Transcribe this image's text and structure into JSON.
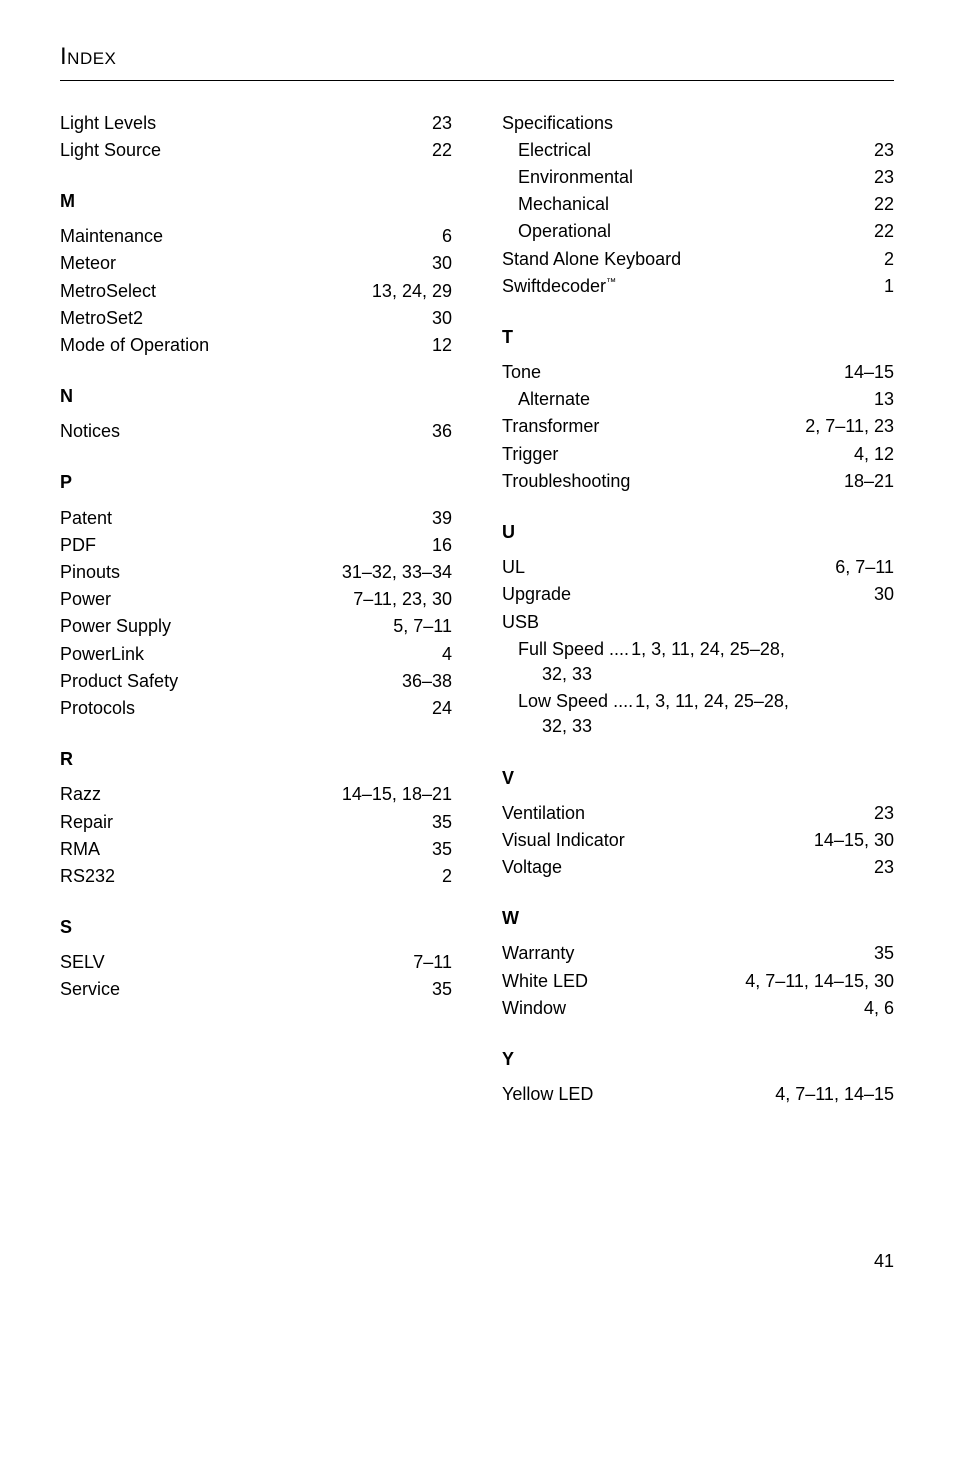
{
  "header": {
    "title": "Index"
  },
  "left_column": {
    "top_entries": [
      {
        "label": "Light Levels",
        "pages": "23",
        "indent": 0
      },
      {
        "label": "Light Source",
        "pages": "22",
        "indent": 0
      }
    ],
    "sections": [
      {
        "letter": "M",
        "entries": [
          {
            "label": "Maintenance",
            "pages": "6",
            "indent": 0
          },
          {
            "label": "Meteor",
            "pages": "30",
            "indent": 0
          },
          {
            "label": "MetroSelect",
            "pages": "13, 24, 29",
            "indent": 0
          },
          {
            "label": "MetroSet2",
            "pages": "30",
            "indent": 0
          },
          {
            "label": "Mode of Operation",
            "pages": "12",
            "indent": 0
          }
        ]
      },
      {
        "letter": "N",
        "entries": [
          {
            "label": "Notices",
            "pages": "36",
            "indent": 0
          }
        ]
      },
      {
        "letter": "P",
        "entries": [
          {
            "label": "Patent",
            "pages": "39",
            "indent": 0
          },
          {
            "label": "PDF",
            "pages": "16",
            "indent": 0
          },
          {
            "label": "Pinouts",
            "pages": "31–32, 33–34",
            "indent": 0
          },
          {
            "label": "Power",
            "pages": "7–11, 23, 30",
            "indent": 0
          },
          {
            "label": "Power Supply",
            "pages": "5, 7–11",
            "indent": 0
          },
          {
            "label": "PowerLink",
            "pages": "4",
            "indent": 0
          },
          {
            "label": "Product Safety",
            "pages": "36–38",
            "indent": 0
          },
          {
            "label": "Protocols",
            "pages": "24",
            "indent": 0
          }
        ]
      },
      {
        "letter": "R",
        "entries": [
          {
            "label": "Razz",
            "pages": "14–15, 18–21",
            "indent": 0
          },
          {
            "label": "Repair",
            "pages": "35",
            "indent": 0
          },
          {
            "label": "RMA",
            "pages": "35",
            "indent": 0
          },
          {
            "label": "RS232",
            "pages": "2",
            "indent": 0
          }
        ]
      },
      {
        "letter": "S",
        "entries": [
          {
            "label": "SELV",
            "pages": "7–11",
            "indent": 0
          },
          {
            "label": "Service",
            "pages": "35",
            "indent": 0
          }
        ]
      }
    ]
  },
  "right_column": {
    "top_entries": [
      {
        "label": "Specifications",
        "pages": "",
        "indent": 0,
        "header": true
      },
      {
        "label": "Electrical",
        "pages": "23",
        "indent": 1
      },
      {
        "label": "Environmental",
        "pages": "23",
        "indent": 1
      },
      {
        "label": "Mechanical",
        "pages": "22",
        "indent": 1
      },
      {
        "label": "Operational",
        "pages": "22",
        "indent": 1
      },
      {
        "label": "Stand Alone Keyboard",
        "pages": "2",
        "indent": 0
      },
      {
        "label": "Swiftdecoder",
        "tm": "™",
        "pages": "1",
        "indent": 0
      }
    ],
    "sections": [
      {
        "letter": "T",
        "entries": [
          {
            "label": "Tone",
            "pages": "14–15",
            "indent": 0
          },
          {
            "label": "Alternate",
            "pages": "13",
            "indent": 1
          },
          {
            "label": "Transformer",
            "pages": "2, 7–11, 23",
            "indent": 0
          },
          {
            "label": "Trigger",
            "pages": "4, 12",
            "indent": 0
          },
          {
            "label": "Troubleshooting",
            "pages": "18–21",
            "indent": 0
          }
        ]
      },
      {
        "letter": "U",
        "entries": [
          {
            "label": "UL",
            "pages": "6, 7–11",
            "indent": 0
          },
          {
            "label": "Upgrade",
            "pages": "30",
            "indent": 0
          },
          {
            "label": "USB",
            "pages": "",
            "indent": 0,
            "header": true
          },
          {
            "label": "Full Speed",
            "pages": "1, 3, 11, 24, 25–28,",
            "indent": 1,
            "raw": true,
            "wrap": "32, 33"
          },
          {
            "label": "Low Speed",
            "pages": "1, 3, 11, 24, 25–28,",
            "indent": 1,
            "raw": true,
            "wrap": "32, 33"
          }
        ]
      },
      {
        "letter": "V",
        "entries": [
          {
            "label": "Ventilation",
            "pages": "23",
            "indent": 0
          },
          {
            "label": "Visual Indicator",
            "pages": "14–15, 30",
            "indent": 0
          },
          {
            "label": "Voltage",
            "pages": "23",
            "indent": 0
          }
        ]
      },
      {
        "letter": "W",
        "entries": [
          {
            "label": "Warranty",
            "pages": "35",
            "indent": 0
          },
          {
            "label": "White LED",
            "pages": "4, 7–11, 14–15, 30",
            "indent": 0
          },
          {
            "label": "Window",
            "pages": "4, 6",
            "indent": 0
          }
        ]
      },
      {
        "letter": "Y",
        "entries": [
          {
            "label": "Yellow LED",
            "pages": "4, 7–11, 14–15",
            "indent": 0
          }
        ]
      }
    ]
  },
  "page_number": "41"
}
